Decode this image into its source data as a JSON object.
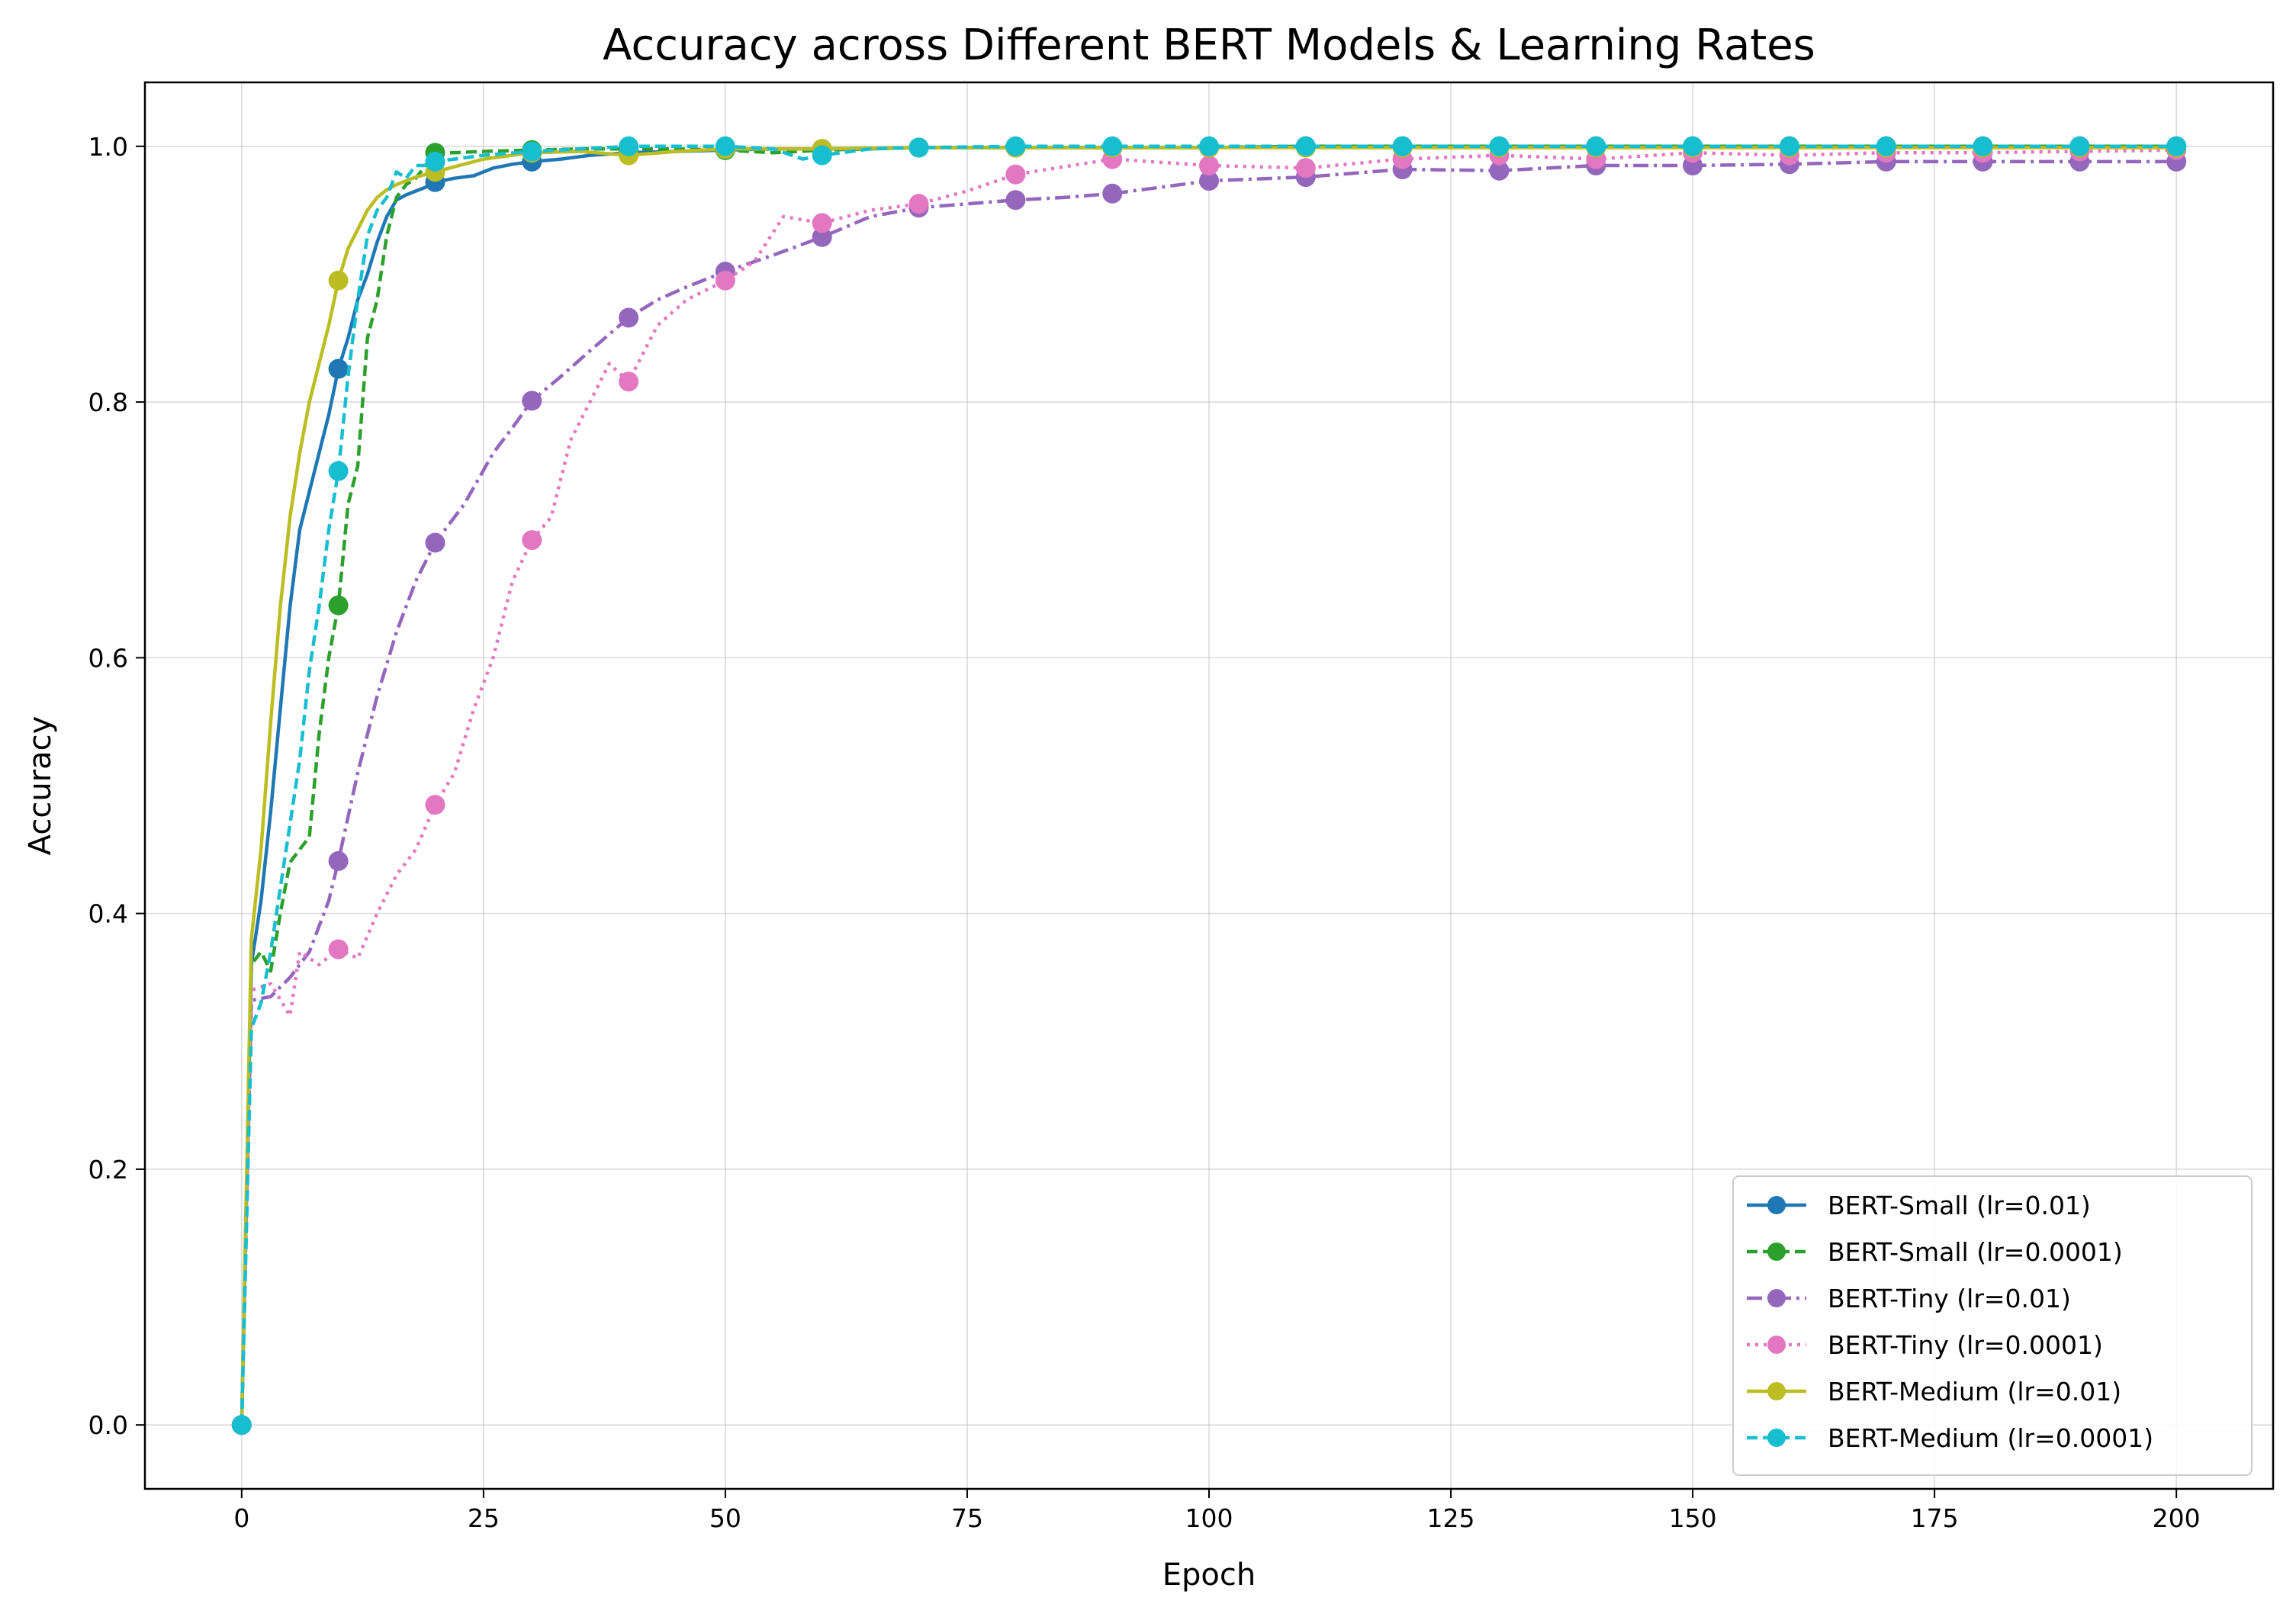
{
  "chart_data": {
    "type": "line",
    "title": "Accuracy across Different BERT Models & Learning Rates",
    "xlabel": "Epoch",
    "ylabel": "Accuracy",
    "xlim": [
      -10,
      210
    ],
    "ylim": [
      -0.05,
      1.05
    ],
    "xticks": [
      0,
      25,
      50,
      75,
      100,
      125,
      150,
      175,
      200
    ],
    "yticks": [
      0.0,
      0.2,
      0.4,
      0.6,
      0.8,
      1.0
    ],
    "grid": true,
    "legend_position": "lower right",
    "series": [
      {
        "name": "BERT-Small (lr=0.01)",
        "color": "#1f77b4",
        "dash": "solid",
        "x": [
          0,
          1,
          2,
          3,
          4,
          5,
          6,
          7,
          8,
          9,
          10,
          11,
          12,
          13,
          14,
          15,
          16,
          17,
          18,
          19,
          20,
          22,
          24,
          26,
          28,
          30,
          33,
          36,
          40,
          45,
          50,
          55,
          60,
          70,
          80,
          90,
          100,
          110,
          120,
          130,
          140,
          150,
          160,
          170,
          180,
          190,
          200
        ],
        "y": [
          0.0,
          0.36,
          0.41,
          0.48,
          0.56,
          0.64,
          0.7,
          0.73,
          0.76,
          0.79,
          0.826,
          0.85,
          0.88,
          0.9,
          0.925,
          0.945,
          0.958,
          0.962,
          0.965,
          0.968,
          0.972,
          0.975,
          0.977,
          0.983,
          0.986,
          0.988,
          0.99,
          0.993,
          0.995,
          0.996,
          0.997,
          0.998,
          0.998,
          0.999,
          0.999,
          0.999,
          0.999,
          1.0,
          1.0,
          1.0,
          1.0,
          1.0,
          1.0,
          1.0,
          1.0,
          1.0,
          1.0
        ],
        "markers_x": [
          0,
          10,
          20,
          30,
          40,
          50,
          60,
          70,
          80,
          90,
          100,
          110,
          120,
          130,
          140,
          150,
          160,
          170,
          180,
          190,
          200
        ]
      },
      {
        "name": "BERT-Small (lr=0.0001)",
        "color": "#2ca02c",
        "dash": "dashed",
        "x": [
          0,
          1,
          2,
          3,
          4,
          5,
          6,
          7,
          8,
          9,
          10,
          11,
          12,
          13,
          14,
          15,
          16,
          17,
          18,
          19,
          20,
          22,
          25,
          30,
          35,
          40,
          45,
          50,
          55,
          60,
          70,
          80,
          90,
          100,
          110,
          120,
          130,
          140,
          150,
          160,
          170,
          180,
          190,
          200
        ],
        "y": [
          0.0,
          0.36,
          0.37,
          0.355,
          0.4,
          0.44,
          0.45,
          0.46,
          0.54,
          0.6,
          0.641,
          0.72,
          0.75,
          0.85,
          0.88,
          0.93,
          0.96,
          0.97,
          0.975,
          0.985,
          0.995,
          0.995,
          0.996,
          0.997,
          0.998,
          0.998,
          0.998,
          0.997,
          0.995,
          0.997,
          0.999,
          0.999,
          0.999,
          0.999,
          1.0,
          1.0,
          1.0,
          1.0,
          1.0,
          1.0,
          1.0,
          1.0,
          1.0,
          1.0
        ],
        "markers_x": [
          0,
          10,
          20,
          30,
          40,
          50,
          60,
          70,
          80,
          90,
          100,
          110,
          120,
          130,
          140,
          150,
          160,
          170,
          180,
          190,
          200
        ]
      },
      {
        "name": "BERT-Tiny (lr=0.01)",
        "color": "#9467bd",
        "dash": "dashdot",
        "x": [
          0,
          1,
          3,
          5,
          7,
          9,
          10,
          12,
          14,
          16,
          18,
          20,
          23,
          26,
          28,
          30,
          33,
          36,
          40,
          43,
          46,
          50,
          55,
          60,
          65,
          70,
          75,
          80,
          85,
          90,
          95,
          100,
          110,
          120,
          130,
          140,
          150,
          160,
          170,
          180,
          190,
          200
        ],
        "y": [
          0.0,
          0.332,
          0.335,
          0.35,
          0.37,
          0.41,
          0.441,
          0.51,
          0.57,
          0.62,
          0.66,
          0.69,
          0.72,
          0.76,
          0.78,
          0.801,
          0.82,
          0.84,
          0.866,
          0.88,
          0.89,
          0.902,
          0.915,
          0.929,
          0.945,
          0.952,
          0.955,
          0.958,
          0.96,
          0.963,
          0.968,
          0.973,
          0.976,
          0.982,
          0.981,
          0.985,
          0.985,
          0.986,
          0.988,
          0.988,
          0.988,
          0.988
        ],
        "markers_x": [
          0,
          10,
          20,
          30,
          40,
          50,
          60,
          70,
          80,
          90,
          100,
          110,
          120,
          130,
          140,
          150,
          160,
          170,
          180,
          190,
          200
        ]
      },
      {
        "name": "BERT-Tiny (lr=0.0001)",
        "color": "#e377c2",
        "dash": "dotted",
        "x": [
          0,
          1,
          3,
          5,
          6,
          8,
          10,
          12,
          14,
          16,
          18,
          20,
          22,
          24,
          26,
          28,
          30,
          32,
          34,
          36,
          38,
          40,
          43,
          46,
          50,
          53,
          56,
          60,
          65,
          70,
          75,
          80,
          90,
          100,
          110,
          120,
          130,
          140,
          150,
          160,
          170,
          180,
          190,
          200
        ],
        "y": [
          0.0,
          0.34,
          0.345,
          0.32,
          0.37,
          0.36,
          0.372,
          0.365,
          0.4,
          0.43,
          0.45,
          0.485,
          0.51,
          0.56,
          0.6,
          0.66,
          0.692,
          0.71,
          0.77,
          0.8,
          0.83,
          0.816,
          0.86,
          0.88,
          0.895,
          0.91,
          0.945,
          0.94,
          0.95,
          0.955,
          0.965,
          0.978,
          0.99,
          0.985,
          0.983,
          0.99,
          0.993,
          0.99,
          0.995,
          0.993,
          0.995,
          0.995,
          0.996,
          0.997
        ],
        "markers_x": [
          0,
          10,
          20,
          30,
          40,
          50,
          60,
          70,
          80,
          90,
          100,
          110,
          120,
          130,
          140,
          150,
          160,
          170,
          180,
          190,
          200
        ]
      },
      {
        "name": "BERT-Medium (lr=0.01)",
        "color": "#bcbd22",
        "dash": "solid",
        "x": [
          0,
          1,
          2,
          3,
          4,
          5,
          6,
          7,
          8,
          9,
          10,
          11,
          12,
          13,
          14,
          15,
          16,
          17,
          18,
          19,
          20,
          25,
          30,
          35,
          40,
          45,
          50,
          60,
          70,
          80,
          90,
          100,
          110,
          120,
          130,
          140,
          150,
          160,
          170,
          180,
          190,
          200
        ],
        "y": [
          0.0,
          0.38,
          0.45,
          0.55,
          0.64,
          0.71,
          0.76,
          0.8,
          0.83,
          0.86,
          0.895,
          0.92,
          0.935,
          0.95,
          0.96,
          0.966,
          0.97,
          0.973,
          0.976,
          0.978,
          0.98,
          0.99,
          0.995,
          0.996,
          0.993,
          0.996,
          0.998,
          0.998,
          0.999,
          0.999,
          0.999,
          0.999,
          0.999,
          0.999,
          0.999,
          0.999,
          0.999,
          0.999,
          0.999,
          0.999,
          0.999,
          0.999
        ],
        "markers_x": [
          0,
          10,
          20,
          30,
          40,
          50,
          60,
          70,
          80,
          90,
          100,
          110,
          120,
          130,
          140,
          150,
          160,
          170,
          180,
          190,
          200
        ]
      },
      {
        "name": "BERT-Medium (lr=0.0001)",
        "color": "#17becf",
        "dash": "dashed",
        "x": [
          0,
          1,
          2,
          3,
          4,
          5,
          6,
          7,
          8,
          9,
          10,
          11,
          12,
          13,
          14,
          15,
          16,
          17,
          18,
          19,
          20,
          25,
          30,
          35,
          40,
          45,
          50,
          55,
          58,
          60,
          62,
          65,
          70,
          80,
          90,
          100,
          110,
          120,
          130,
          140,
          150,
          160,
          170,
          180,
          190,
          200
        ],
        "y": [
          0.0,
          0.31,
          0.33,
          0.37,
          0.42,
          0.47,
          0.52,
          0.59,
          0.64,
          0.7,
          0.746,
          0.82,
          0.88,
          0.93,
          0.95,
          0.96,
          0.98,
          0.975,
          0.985,
          0.985,
          0.988,
          0.993,
          0.996,
          0.998,
          1.0,
          1.0,
          1.0,
          0.998,
          0.99,
          0.993,
          0.995,
          0.998,
          0.999,
          1.0,
          1.0,
          1.0,
          1.0,
          1.0,
          1.0,
          1.0,
          1.0,
          1.0,
          1.0,
          1.0,
          1.0,
          1.0
        ],
        "markers_x": [
          0,
          10,
          20,
          30,
          40,
          50,
          60,
          70,
          80,
          90,
          100,
          110,
          120,
          130,
          140,
          150,
          160,
          170,
          180,
          190,
          200
        ]
      }
    ]
  }
}
